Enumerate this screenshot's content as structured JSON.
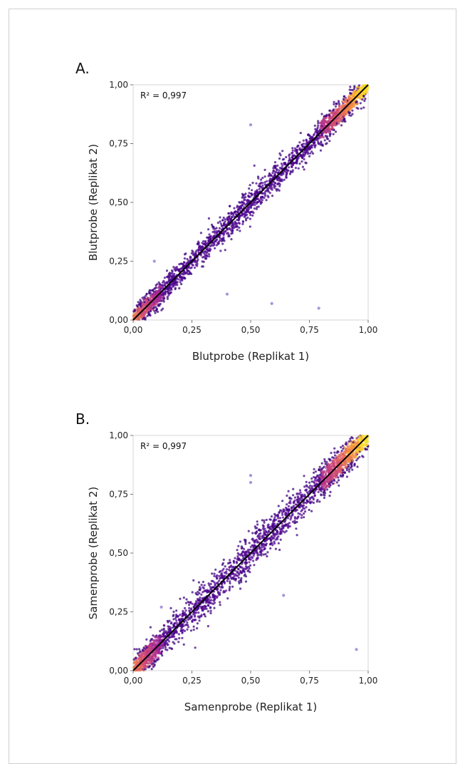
{
  "chart_data": [
    {
      "type": "scatter",
      "panel_label": "A.",
      "annotation": "R² = 0,997",
      "xlabel": "Blutprobe (Replikat 1)",
      "ylabel": "Blutprobe (Replikat 2)",
      "xlim": [
        0,
        1
      ],
      "ylim": [
        0,
        1
      ],
      "xticks": [
        "0,00",
        "0,25",
        "0,50",
        "0,75",
        "1,00"
      ],
      "yticks": [
        "0,00",
        "0,25",
        "0,50",
        "0,75",
        "1,00"
      ],
      "tick_values": [
        0,
        0.25,
        0.5,
        0.75,
        1
      ],
      "fit_line": {
        "x": [
          0,
          1
        ],
        "y": [
          0,
          1
        ]
      },
      "color_scale": "density (purple → magenta → orange → yellow)",
      "spread": 0.02,
      "outliers": [
        {
          "x": 0.5,
          "y": 0.83
        },
        {
          "x": 0.4,
          "y": 0.11
        },
        {
          "x": 0.59,
          "y": 0.07
        },
        {
          "x": 0.79,
          "y": 0.05
        },
        {
          "x": 0.09,
          "y": 0.25
        }
      ]
    },
    {
      "type": "scatter",
      "panel_label": "B.",
      "annotation": "R² = 0,997",
      "xlabel": "Samenprobe (Replikat 1)",
      "ylabel": "Samenprobe (Replikat 2)",
      "xlim": [
        0,
        1
      ],
      "ylim": [
        0,
        1
      ],
      "xticks": [
        "0,00",
        "0,25",
        "0,50",
        "0,75",
        "1,00"
      ],
      "yticks": [
        "0,00",
        "0,25",
        "0,50",
        "0,75",
        "1,00"
      ],
      "tick_values": [
        0,
        0.25,
        0.5,
        0.75,
        1
      ],
      "fit_line": {
        "x": [
          0,
          1
        ],
        "y": [
          0,
          1
        ]
      },
      "color_scale": "density (purple → magenta → orange → yellow)",
      "spread": 0.025,
      "outliers": [
        {
          "x": 0.5,
          "y": 0.83
        },
        {
          "x": 0.5,
          "y": 0.8
        },
        {
          "x": 0.64,
          "y": 0.32
        },
        {
          "x": 0.95,
          "y": 0.09
        },
        {
          "x": 0.12,
          "y": 0.27
        }
      ]
    }
  ]
}
